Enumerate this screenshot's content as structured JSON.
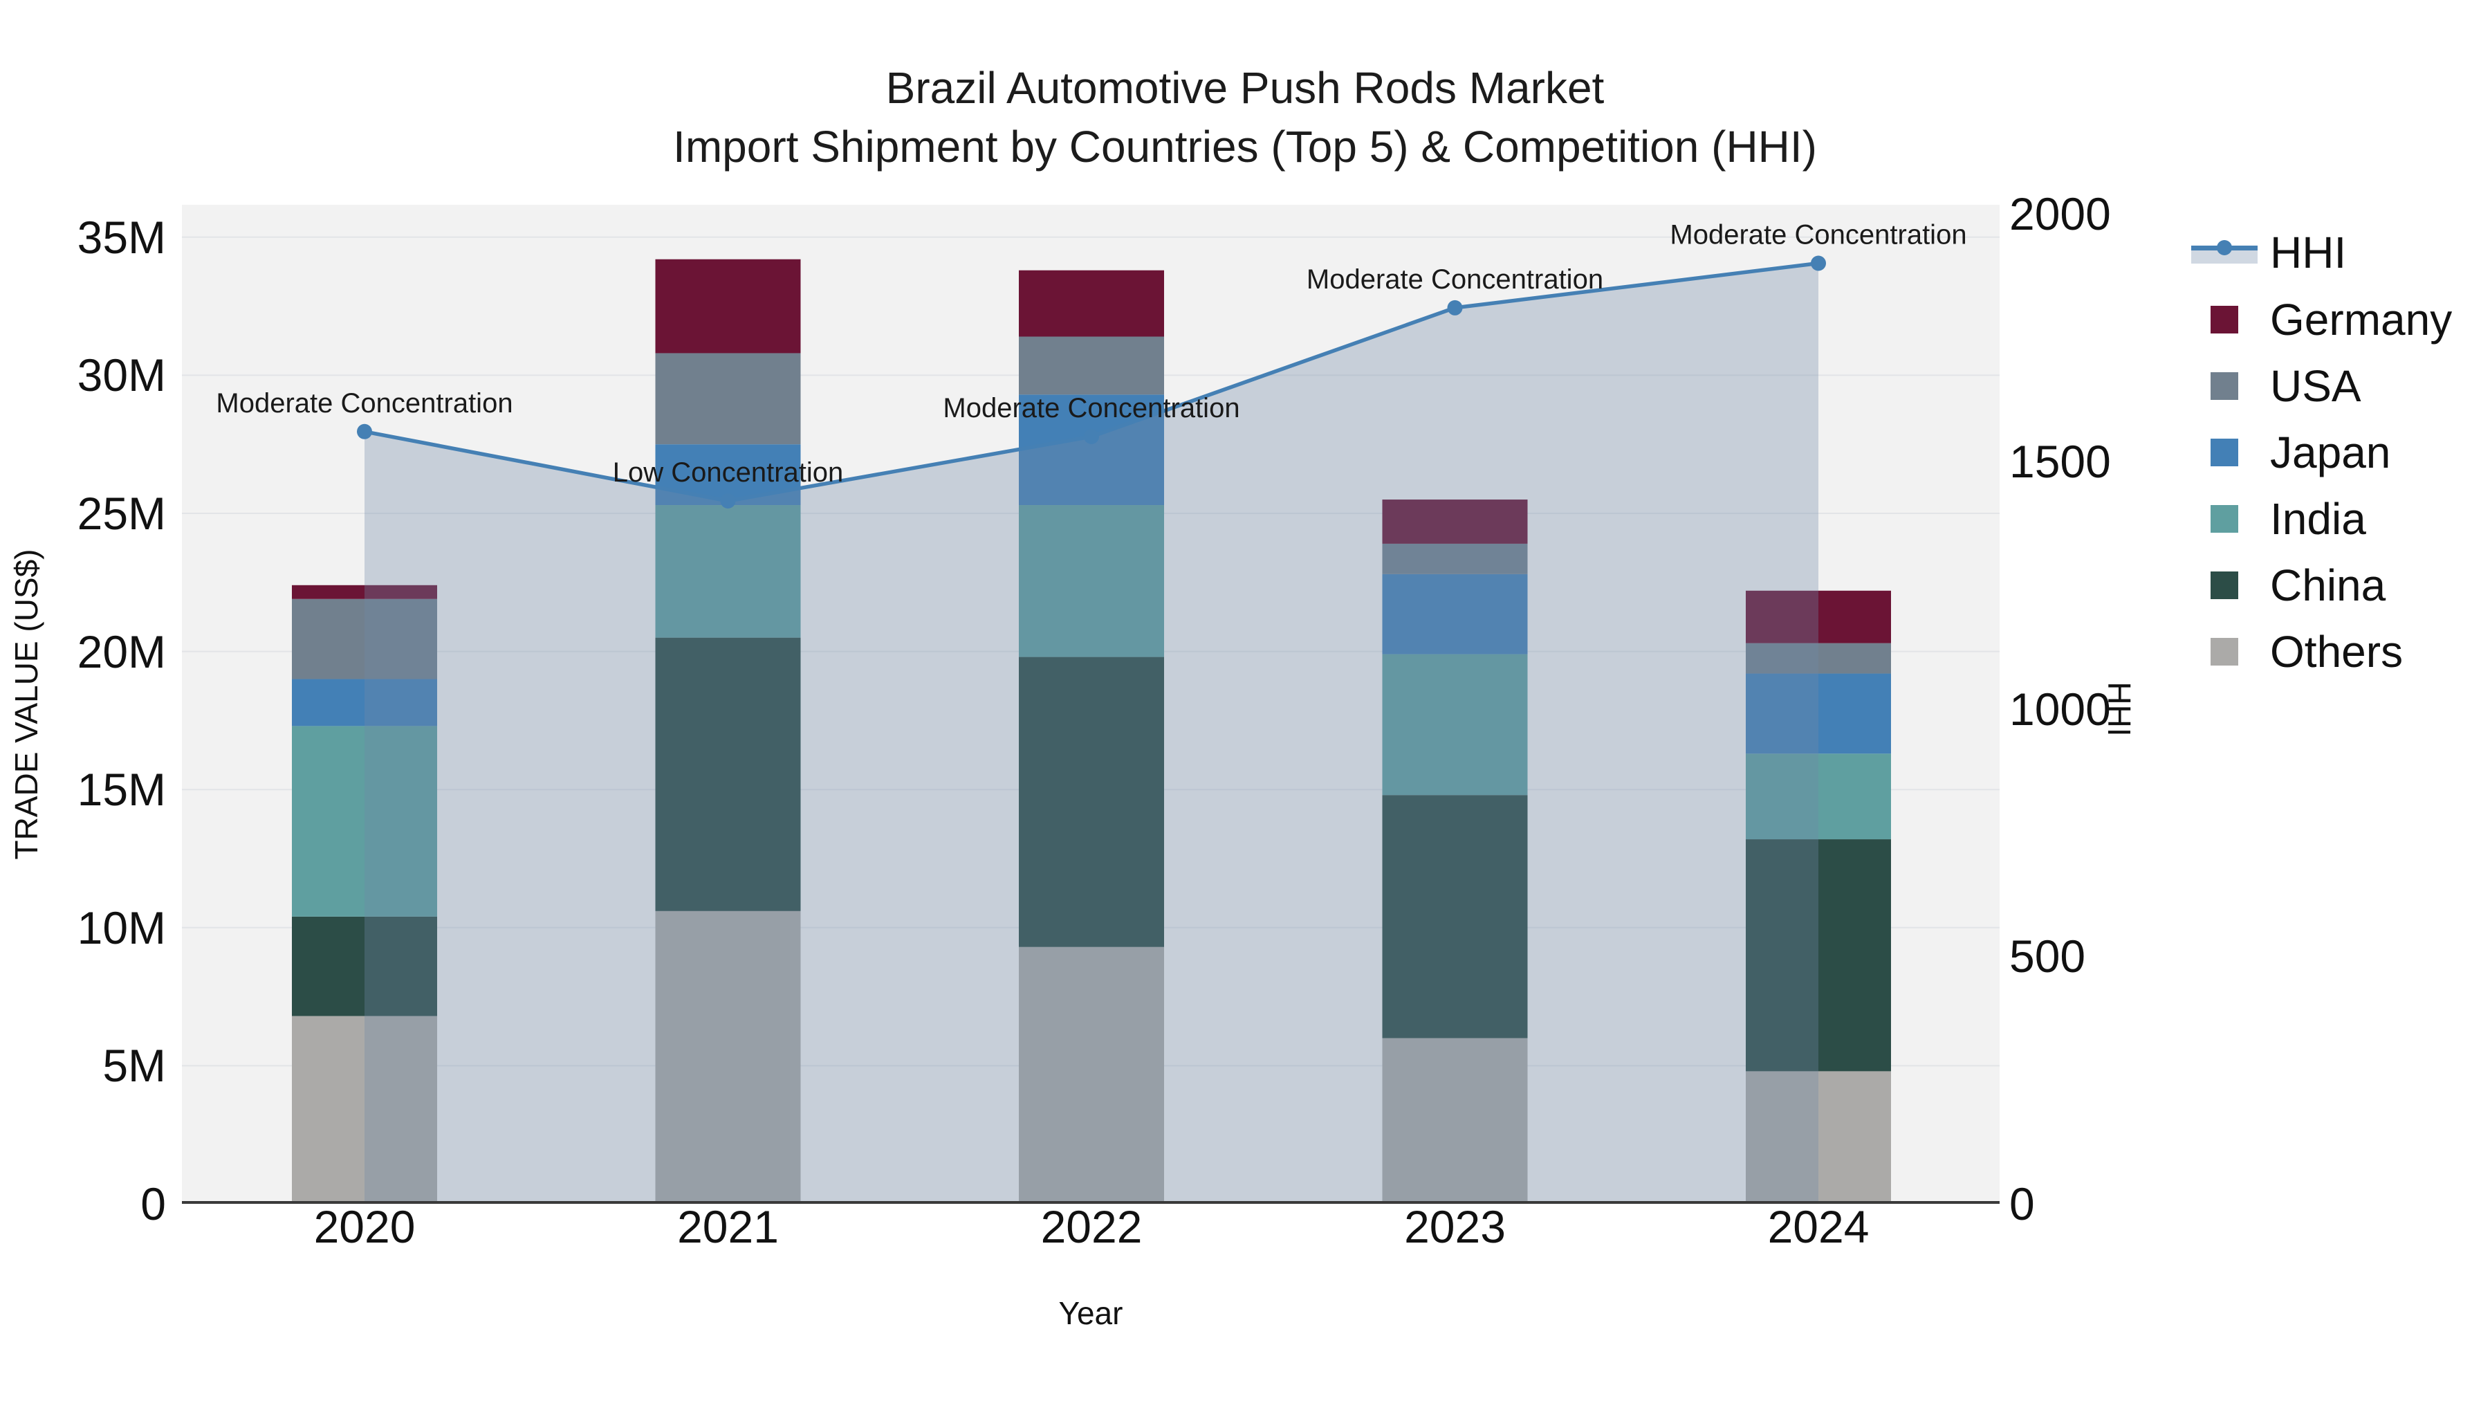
{
  "figure": {
    "title_line1": "Brazil Automotive Push Rods Market",
    "title_line2": "Import Shipment by Countries (Top 5) & Competition (HHI)"
  },
  "chart_data": {
    "type": "bar",
    "variant": "stacked-bars-with-secondary-axis-line",
    "title": "Brazil Automotive Push Rods Market",
    "subtitle": "Import Shipment by Countries (Top 5) & Competition (HHI)",
    "xlabel": "Year",
    "ylabel_left": "TRADE VALUE (US$)",
    "ylabel_right": "HHI",
    "unit_left": "millions of US$",
    "categories": [
      "2020",
      "2021",
      "2022",
      "2023",
      "2024"
    ],
    "series": [
      {
        "name": "Others",
        "color": "#abaaa8",
        "values": [
          6.8,
          10.6,
          9.3,
          6.0,
          4.8
        ]
      },
      {
        "name": "China",
        "color": "#2c4d47",
        "values": [
          3.6,
          9.9,
          10.5,
          8.8,
          8.4
        ]
      },
      {
        "name": "India",
        "color": "#5f9fa0",
        "values": [
          6.9,
          4.8,
          5.5,
          5.1,
          3.1
        ]
      },
      {
        "name": "Japan",
        "color": "#4380b6",
        "values": [
          1.7,
          2.2,
          4.0,
          2.9,
          2.9
        ]
      },
      {
        "name": "USA",
        "color": "#71808e",
        "values": [
          2.9,
          3.3,
          2.1,
          1.1,
          1.1
        ]
      },
      {
        "name": "Germany",
        "color": "#6b1435",
        "values": [
          0.5,
          3.4,
          2.4,
          1.6,
          1.9
        ]
      }
    ],
    "bar_totals": [
      22.4,
      34.2,
      33.8,
      25.5,
      22.2
    ],
    "line_series": {
      "name": "HHI",
      "axis": "right",
      "color": "#4580b4",
      "area_fill": "rgba(112,136,168,0.33)",
      "values": [
        1560,
        1420,
        1550,
        1810,
        1900
      ]
    },
    "annotations": [
      "Moderate Concentration",
      "Low Concentration",
      "Moderate Concentration",
      "Moderate Concentration",
      "Moderate Concentration"
    ],
    "left_axis": {
      "tick_values": [
        0,
        5,
        10,
        15,
        20,
        25,
        30,
        35
      ],
      "tick_labels": [
        "0",
        "5M",
        "10M",
        "15M",
        "20M",
        "25M",
        "30M",
        "35M"
      ],
      "range_M": [
        0,
        36.2
      ]
    },
    "right_axis": {
      "tick_values": [
        0,
        500,
        1000,
        1500,
        2000
      ],
      "tick_labels": [
        "0",
        "500",
        "1000",
        "1500",
        "2000"
      ],
      "range": [
        0,
        2018
      ]
    },
    "grid": true,
    "plot_background": "#f2f2f2",
    "gridline_color": "#e2e4e7",
    "spine_color": "#3a3a3a",
    "legend_position": "right"
  },
  "legend": {
    "items": [
      {
        "label": "HHI",
        "color": "#4580b4",
        "glyph": "line-marker",
        "band": "rgba(112,136,168,0.33)"
      },
      {
        "label": "Germany",
        "color": "#6b1435",
        "glyph": "square"
      },
      {
        "label": "USA",
        "color": "#71808e",
        "glyph": "square"
      },
      {
        "label": "Japan",
        "color": "#4380b6",
        "glyph": "square"
      },
      {
        "label": "India",
        "color": "#5f9fa0",
        "glyph": "square"
      },
      {
        "label": "China",
        "color": "#2c4d47",
        "glyph": "square"
      },
      {
        "label": "Others",
        "color": "#abaaa8",
        "glyph": "square"
      }
    ]
  }
}
